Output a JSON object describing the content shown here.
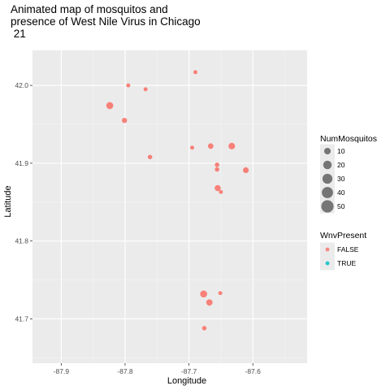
{
  "chart_data": {
    "type": "scatter",
    "title_lines": [
      "Animated map of mosquitos and",
      "presence of West Nile Virus in Chicago",
      " 21"
    ],
    "xlabel": "Longitude",
    "ylabel": "Latitude",
    "xlim": [
      -87.945,
      -87.515
    ],
    "ylim": [
      41.643,
      42.045
    ],
    "x_ticks": [
      -87.9,
      -87.8,
      -87.7,
      -87.6
    ],
    "x_tick_labels": [
      "-87.9",
      "-87.8",
      "-87.7",
      "-87.6"
    ],
    "y_ticks": [
      41.7,
      41.8,
      41.9,
      42.0
    ],
    "y_tick_labels": [
      "41.7",
      "41.8",
      "41.9",
      "42.0"
    ],
    "grid": true,
    "points": [
      {
        "x": -87.69,
        "y": 42.017,
        "n": 2,
        "wnv": "FALSE"
      },
      {
        "x": -87.795,
        "y": 42.0,
        "n": 2,
        "wnv": "FALSE"
      },
      {
        "x": -87.768,
        "y": 41.995,
        "n": 2,
        "wnv": "FALSE"
      },
      {
        "x": -87.824,
        "y": 41.974,
        "n": 12,
        "wnv": "FALSE"
      },
      {
        "x": -87.801,
        "y": 41.955,
        "n": 5,
        "wnv": "FALSE"
      },
      {
        "x": -87.633,
        "y": 41.922,
        "n": 10,
        "wnv": "FALSE"
      },
      {
        "x": -87.666,
        "y": 41.922,
        "n": 6,
        "wnv": "FALSE"
      },
      {
        "x": -87.695,
        "y": 41.92,
        "n": 2,
        "wnv": "FALSE"
      },
      {
        "x": -87.761,
        "y": 41.908,
        "n": 3,
        "wnv": "FALSE"
      },
      {
        "x": -87.656,
        "y": 41.898,
        "n": 3,
        "wnv": "FALSE"
      },
      {
        "x": -87.656,
        "y": 41.892,
        "n": 3,
        "wnv": "FALSE"
      },
      {
        "x": -87.611,
        "y": 41.891,
        "n": 7,
        "wnv": "FALSE"
      },
      {
        "x": -87.655,
        "y": 41.868,
        "n": 8,
        "wnv": "FALSE"
      },
      {
        "x": -87.65,
        "y": 41.863,
        "n": 2,
        "wnv": "FALSE"
      },
      {
        "x": -87.677,
        "y": 41.732,
        "n": 12,
        "wnv": "FALSE"
      },
      {
        "x": -87.651,
        "y": 41.733,
        "n": 2,
        "wnv": "FALSE"
      },
      {
        "x": -87.668,
        "y": 41.721,
        "n": 9,
        "wnv": "FALSE"
      },
      {
        "x": -87.676,
        "y": 41.688,
        "n": 3,
        "wnv": "FALSE"
      }
    ],
    "size_legend": {
      "title": "NumMosquitos",
      "entries": [
        {
          "value": 10,
          "label": "10"
        },
        {
          "value": 20,
          "label": "20"
        },
        {
          "value": 30,
          "label": "30"
        },
        {
          "value": 40,
          "label": "40"
        },
        {
          "value": 50,
          "label": "50"
        }
      ]
    },
    "color_legend": {
      "title": "WnvPresent",
      "entries": [
        {
          "label": "FALSE",
          "color": "#F8766D"
        },
        {
          "label": "TRUE",
          "color": "#00BFC4"
        }
      ]
    }
  },
  "colors": {
    "panel_bg": "#EBEBEB",
    "grid_major": "#FFFFFF",
    "false": "#F8766D",
    "true": "#00BFC4",
    "legend_key_bg": "#EBEBEB"
  }
}
